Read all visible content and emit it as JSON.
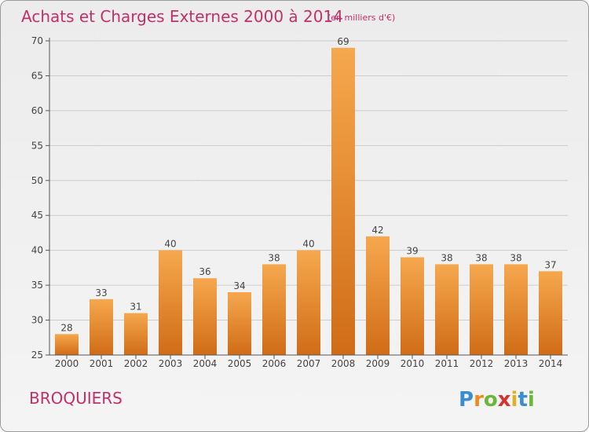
{
  "chart_data": {
    "type": "bar",
    "title": "Achats et Charges Externes 2000 à 2014",
    "subtitle": "(en milliers d'€)",
    "categories": [
      "2000",
      "2001",
      "2002",
      "2003",
      "2004",
      "2005",
      "2006",
      "2007",
      "2008",
      "2009",
      "2010",
      "2011",
      "2012",
      "2013",
      "2014"
    ],
    "values": [
      28,
      33,
      31,
      40,
      36,
      34,
      38,
      40,
      69,
      42,
      39,
      38,
      38,
      38,
      37
    ],
    "ylim": [
      25,
      70
    ],
    "yticks": [
      25,
      30,
      35,
      40,
      45,
      50,
      55,
      60,
      65,
      70
    ],
    "xlabel": "",
    "ylabel": "",
    "grid": true,
    "colors": {
      "bar_light": "#f6a84e",
      "bar_dark": "#d06c17",
      "grid": "#cccccc",
      "axis": "#555555"
    }
  },
  "commune_name": "BROQUIERS",
  "brand": {
    "name": "Proxiti",
    "letters": [
      "P",
      "r",
      "o",
      "x",
      "i",
      "t",
      "i"
    ],
    "colors": [
      "#3a8ed0",
      "#f08a1c",
      "#6cb63a",
      "#d83030",
      "#e0b020",
      "#3a8ed0",
      "#6cb63a"
    ]
  }
}
